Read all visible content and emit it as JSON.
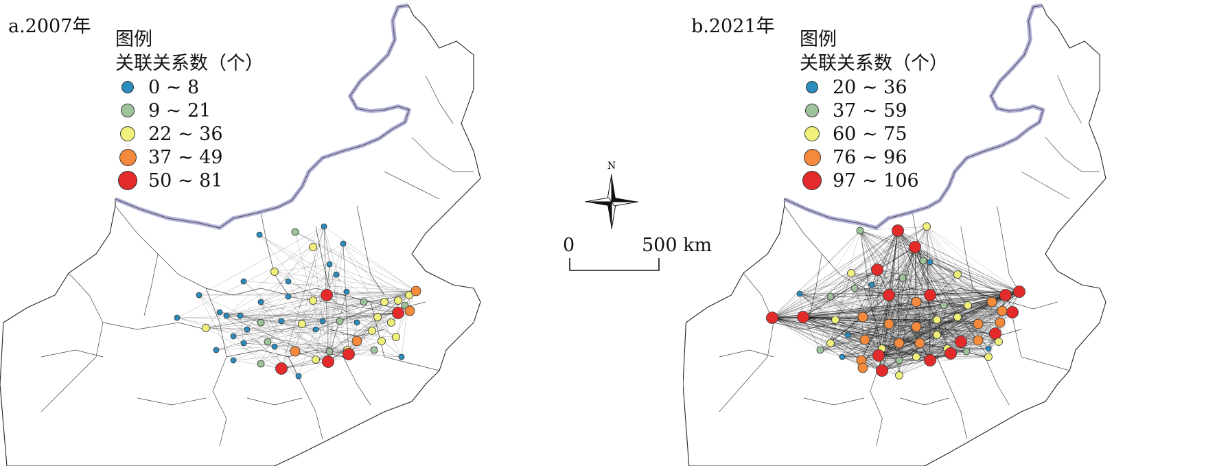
{
  "panels": [
    {
      "title": "a.2007年",
      "legend": {
        "title": "图例",
        "subtitle": "关联关系数（个）",
        "items": [
          {
            "label": "0 ~ 8",
            "color": "#2b8cbe"
          },
          {
            "label": "9 ~ 21",
            "color": "#9ec29a"
          },
          {
            "label": "22 ~ 36",
            "color": "#f0f07a"
          },
          {
            "label": "37 ~ 49",
            "color": "#f58a3c"
          },
          {
            "label": "50 ~ 81",
            "color": "#e32b2b"
          }
        ]
      }
    },
    {
      "title": "b.2021年",
      "legend": {
        "title": "图例",
        "subtitle": "关联关系数（个）",
        "items": [
          {
            "label": "20 ~ 36",
            "color": "#2b8cbe"
          },
          {
            "label": "37 ~ 59",
            "color": "#9ec29a"
          },
          {
            "label": "60 ~ 75",
            "color": "#f0f07a"
          },
          {
            "label": "76 ~ 96",
            "color": "#f58a3c"
          },
          {
            "label": "97 ~ 106",
            "color": "#e32b2b"
          }
        ]
      }
    }
  ],
  "compass": {
    "north_label": "N"
  },
  "scale_bar": {
    "start_label": "0",
    "end_label": "500 km"
  },
  "colors": {
    "border": "#9a9ad0",
    "link": "#111111"
  }
}
